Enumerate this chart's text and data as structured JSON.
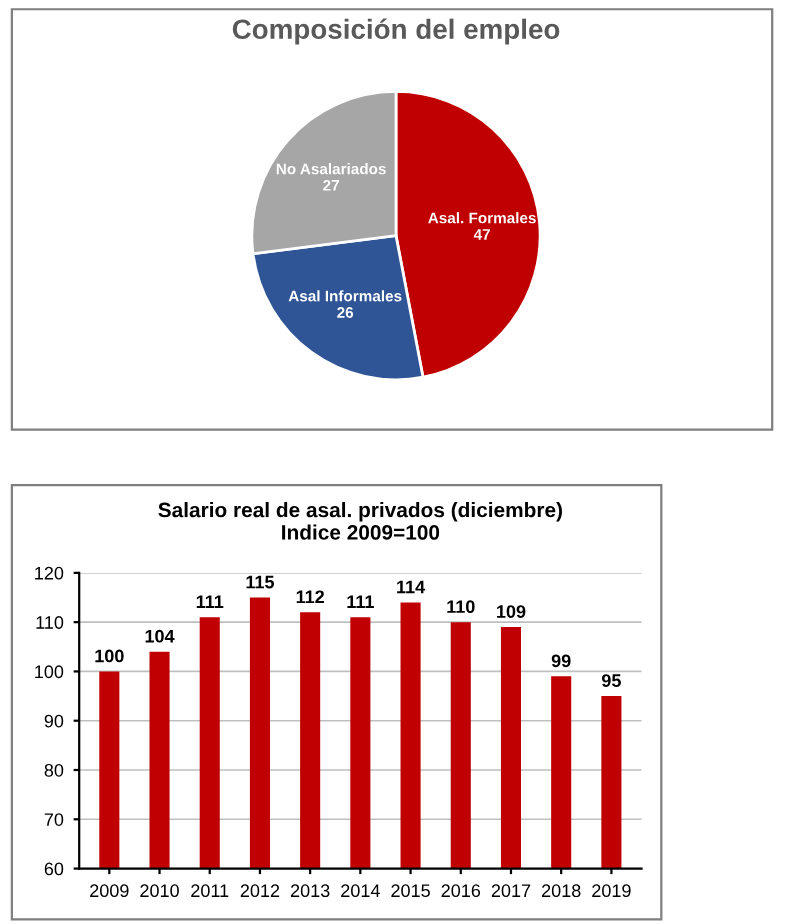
{
  "chart_data": [
    {
      "type": "pie",
      "title": "Composición del empleo",
      "categories": [
        "Asal. Formales",
        "Asal Informales",
        "No Asalariados"
      ],
      "values": [
        47,
        26,
        27
      ],
      "colors": [
        "#c00000",
        "#2f5597",
        "#a6a6a6"
      ],
      "data_labels": true
    },
    {
      "type": "bar",
      "title": "Salario real de asal. privados (diciembre)",
      "subtitle": "Indice 2009=100",
      "categories": [
        "2009",
        "2010",
        "2011",
        "2012",
        "2013",
        "2014",
        "2015",
        "2016",
        "2017",
        "2018",
        "2019"
      ],
      "values": [
        100,
        104,
        111,
        115,
        112,
        111,
        114,
        110,
        109,
        99,
        95
      ],
      "color": "#c00000",
      "ylim": [
        60,
        120
      ],
      "yticks": [
        60,
        70,
        80,
        90,
        100,
        110,
        120
      ],
      "grid": "y",
      "data_labels": true
    }
  ]
}
